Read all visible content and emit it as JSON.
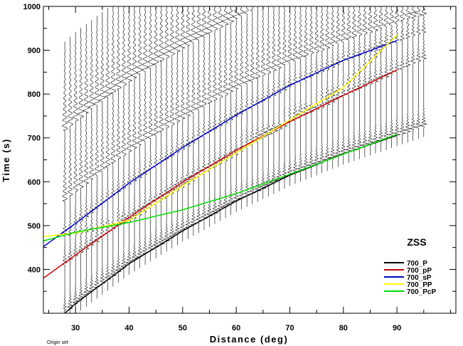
{
  "chart_data": {
    "type": "line",
    "title": "ZSS",
    "xlabel": "Distance (deg)",
    "ylabel": "Time (s)",
    "xlim": [
      24,
      101
    ],
    "ylim": [
      300,
      1000
    ],
    "x_ticks": [
      30,
      40,
      50,
      60,
      70,
      80,
      90
    ],
    "y_ticks": [
      400,
      500,
      600,
      700,
      800,
      900,
      1000
    ],
    "legend_position": "bottom-right",
    "footnote": "Origin set",
    "traces": {
      "distances_start": 28,
      "distances_end": 95,
      "distance_step": 1,
      "color": "#000000"
    },
    "series": [
      {
        "name": "700_P",
        "color": "#000000",
        "x": [
          28,
          30,
          40,
          50,
          60,
          70,
          80,
          90
        ],
        "y": [
          300,
          322,
          413,
          488,
          556,
          615,
          664,
          706
        ]
      },
      {
        "name": "700_pP",
        "color": "#cc0000",
        "x": [
          24,
          30,
          40,
          50,
          60,
          70,
          80,
          90
        ],
        "y": [
          380,
          433,
          519,
          599,
          672,
          737,
          797,
          855
        ]
      },
      {
        "name": "700_sP",
        "color": "#0000cc",
        "x": [
          24,
          30,
          40,
          50,
          60,
          70,
          80,
          90
        ],
        "y": [
          452,
          505,
          597,
          678,
          752,
          820,
          877,
          922
        ]
      },
      {
        "name": "700_PP",
        "color": "#ffff00",
        "x": [
          24,
          30,
          40,
          50,
          60,
          70,
          80,
          90
        ],
        "y": [
          475,
          483,
          512,
          591,
          666,
          741,
          815,
          935
        ]
      },
      {
        "name": "700_PcP",
        "color": "#00dd00",
        "x": [
          24,
          30,
          40,
          50,
          60,
          70,
          80,
          90
        ],
        "y": [
          465,
          485,
          507,
          536,
          573,
          617,
          663,
          708
        ]
      }
    ]
  }
}
